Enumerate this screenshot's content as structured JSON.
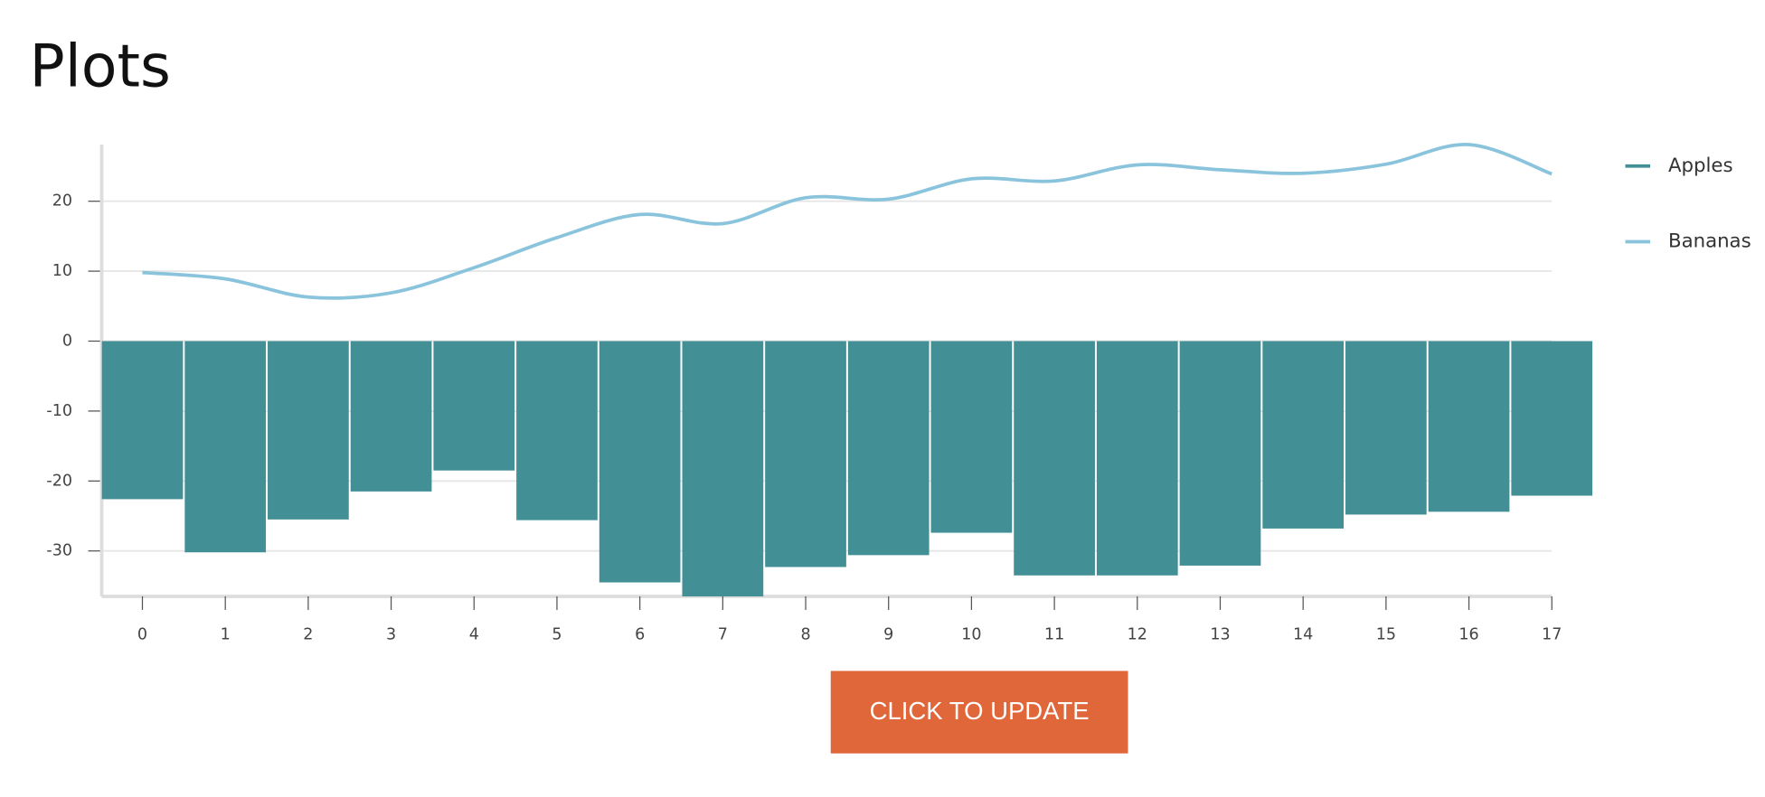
{
  "title": "Plots",
  "button": {
    "label": "CLICK TO UPDATE"
  },
  "chart_data": {
    "type": "bar-line",
    "categories": [
      "0",
      "1",
      "2",
      "3",
      "4",
      "5",
      "6",
      "7",
      "8",
      "9",
      "10",
      "11",
      "12",
      "13",
      "14",
      "15",
      "16",
      "17"
    ],
    "series": [
      {
        "name": "Apples",
        "type": "bar",
        "color": "#428f96",
        "values": [
          -22.6,
          -30.2,
          -25.5,
          -21.5,
          -18.5,
          -25.6,
          -34.5,
          -36.5,
          -32.3,
          -30.6,
          -27.4,
          -33.5,
          -33.5,
          -32.1,
          -26.8,
          -24.8,
          -24.4,
          -22.1
        ]
      },
      {
        "name": "Bananas",
        "type": "line",
        "color": "#8ac4dc",
        "values": [
          9.8,
          8.9,
          6.3,
          6.9,
          10.5,
          14.8,
          18.1,
          16.8,
          20.5,
          20.3,
          23.2,
          22.9,
          25.2,
          24.5,
          24.0,
          25.3,
          28.1,
          23.9
        ]
      }
    ],
    "ylim": [
      -36.5,
      28.1
    ],
    "yticks": [
      -30,
      -20,
      -10,
      0,
      10,
      20
    ],
    "grid": true,
    "legend": "right"
  }
}
